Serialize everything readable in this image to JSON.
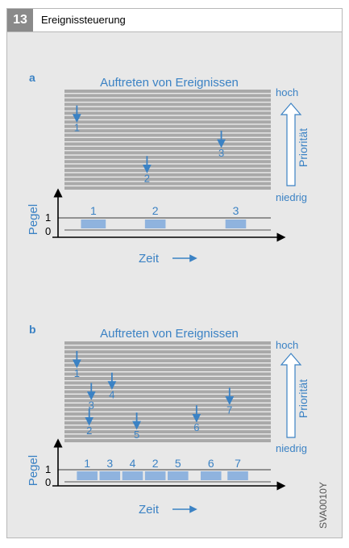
{
  "figure": {
    "number": "13",
    "title": "Ereignissteuerung",
    "code": "SVA0010Y"
  },
  "colors": {
    "accent": "#3b82c4",
    "slot_fill": "#8fb3de",
    "stripe_gray": "#a9a9a9",
    "header_badge": "#8a8a8a"
  },
  "panels": [
    {
      "label": "a",
      "title": "Auftreten von Ereignissen",
      "priority_label": "Priorität",
      "high_label": "hoch",
      "low_label": "niedrig",
      "y_axis_label": "Pegel",
      "x_axis_label": "Zeit",
      "level_one": "1",
      "level_zero": "0",
      "events": [
        {
          "label": "1",
          "time": 0.06,
          "priority": 0.18
        },
        {
          "label": "2",
          "time": 0.4,
          "priority": 0.82
        },
        {
          "label": "3",
          "time": 0.76,
          "priority": 0.5
        }
      ],
      "slots": [
        {
          "label": "1",
          "start": 0.08,
          "end": 0.2
        },
        {
          "label": "2",
          "start": 0.39,
          "end": 0.49
        },
        {
          "label": "3",
          "start": 0.78,
          "end": 0.88
        }
      ]
    },
    {
      "label": "b",
      "title": "Auftreten von Ereignissen",
      "priority_label": "Priorität",
      "high_label": "hoch",
      "low_label": "niedrig",
      "y_axis_label": "Pegel",
      "x_axis_label": "Zeit",
      "level_one": "1",
      "level_zero": "0",
      "events": [
        {
          "label": "1",
          "time": 0.06,
          "priority": 0.1
        },
        {
          "label": "3",
          "time": 0.13,
          "priority": 0.5
        },
        {
          "label": "4",
          "time": 0.23,
          "priority": 0.37
        },
        {
          "label": "2",
          "time": 0.12,
          "priority": 0.82
        },
        {
          "label": "5",
          "time": 0.35,
          "priority": 0.87
        },
        {
          "label": "6",
          "time": 0.64,
          "priority": 0.78
        },
        {
          "label": "7",
          "time": 0.8,
          "priority": 0.56
        }
      ],
      "slots": [
        {
          "label": "1",
          "start": 0.06,
          "end": 0.16
        },
        {
          "label": "3",
          "start": 0.17,
          "end": 0.27
        },
        {
          "label": "4",
          "start": 0.28,
          "end": 0.38
        },
        {
          "label": "2",
          "start": 0.39,
          "end": 0.49
        },
        {
          "label": "5",
          "start": 0.5,
          "end": 0.6
        },
        {
          "label": "6",
          "start": 0.66,
          "end": 0.76
        },
        {
          "label": "7",
          "start": 0.79,
          "end": 0.89
        }
      ]
    }
  ]
}
